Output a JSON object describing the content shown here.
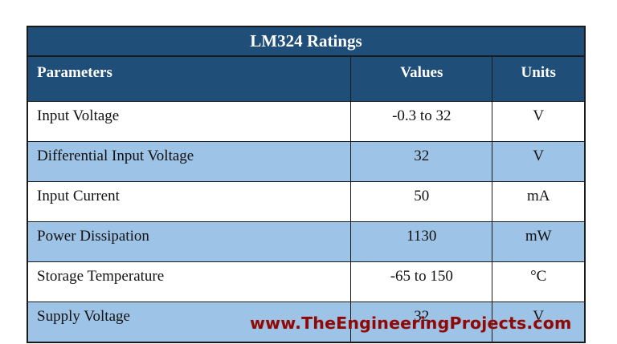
{
  "table": {
    "title": "LM324 Ratings",
    "headers": [
      "Parameters",
      "Values",
      "Units"
    ],
    "rows": [
      {
        "parameter": "Input Voltage",
        "value": "-0.3 to 32",
        "unit": "V"
      },
      {
        "parameter": "Differential Input Voltage",
        "value": "32",
        "unit": "V"
      },
      {
        "parameter": "Input Current",
        "value": "50",
        "unit": "mA"
      },
      {
        "parameter": "Power Dissipation",
        "value": "1130",
        "unit": "mW"
      },
      {
        "parameter": "Storage Temperature",
        "value": "-65 to 150",
        "unit": "°C"
      },
      {
        "parameter": "Supply Voltage",
        "value": "32",
        "unit": "V"
      }
    ]
  },
  "footer": {
    "watermark": "www.TheEngineeringProjects.com"
  },
  "colors": {
    "header_bg": "#1f4e79",
    "alt_row_bg": "#9dc3e6",
    "watermark": "#8b0a0a"
  }
}
